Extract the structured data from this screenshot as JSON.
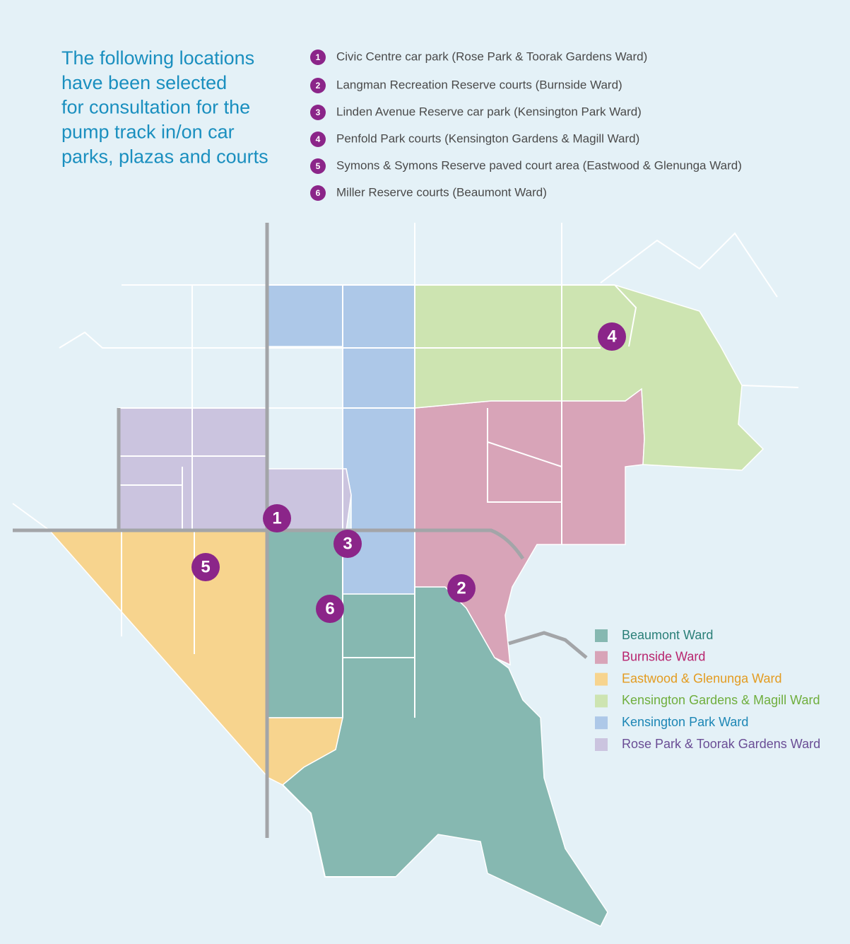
{
  "intro_lines": [
    "The following locations",
    "have been selected",
    "for consultation for the",
    "pump track in/on car",
    "parks, plazas and courts"
  ],
  "locations": [
    {
      "number": "1",
      "label": "Civic Centre car park (Rose Park & Toorak Gardens Ward)"
    },
    {
      "number": "2",
      "label": "Langman Recreation Reserve courts (Burnside Ward)"
    },
    {
      "number": "3",
      "label": "Linden Avenue Reserve car park (Kensington Park Ward)"
    },
    {
      "number": "4",
      "label": "Penfold Park courts (Kensington Gardens & Magill Ward)"
    },
    {
      "number": "5",
      "label": "Symons & Symons Reserve paved court area (Eastwood & Glenunga Ward)"
    },
    {
      "number": "6",
      "label": "Miller Reserve courts (Beaumont Ward)"
    }
  ],
  "marker_color": "#8b2589",
  "legend": [
    {
      "name": "Beaumont Ward",
      "color": "#86b8b1",
      "text_color": "#2a7f78"
    },
    {
      "name": "Burnside Ward",
      "color": "#d8a4b8",
      "text_color": "#b8246e"
    },
    {
      "name": "Eastwood & Glenunga Ward",
      "color": "#f7d48e",
      "text_color": "#e39b1f"
    },
    {
      "name": "Kensington Gardens & Magill Ward",
      "color": "#cde4b1",
      "text_color": "#6fae3d"
    },
    {
      "name": "Kensington Park Ward",
      "color": "#adc8e8",
      "text_color": "#1c86b5"
    },
    {
      "name": "Rose Park & Toorak Gardens Ward",
      "color": "#cbc4df",
      "text_color": "#6a4d95"
    }
  ]
}
